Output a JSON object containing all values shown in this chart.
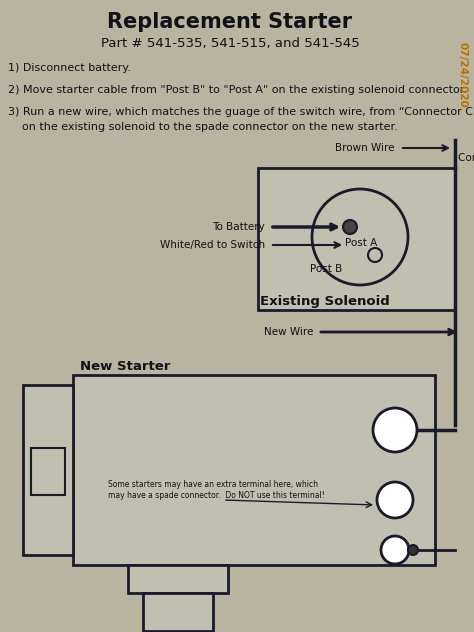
{
  "title": "Replacement Starter",
  "subtitle": "Part # 541-535, 541-515, and 541-545",
  "bg_color": "#b8b4a0",
  "paper_color": "#c8c5b2",
  "diagram_color": "#c0bfb0",
  "line_color": "#1a1a2a",
  "text_color": "#111118",
  "date_color": "#b87000",
  "date_text": "07/24/2020",
  "inst1": "1) Disconnect battery.",
  "inst2": "2) Move starter cable from \"Post B\" to \"Post A\" on the existing solenoid connector.",
  "inst3a": "3) Run a new wire, which matches the guage of the switch wire, from “Connector C”",
  "inst3b": "    on the existing solenoid to the spade connector on the new starter.",
  "label_brown": "Brown Wire",
  "label_connc": "Connector C",
  "label_battery": "To Battery",
  "label_posta": "Post A",
  "label_switch": "White/Red to Switch",
  "label_postb": "Post B",
  "label_existing": "Existing Solenoid",
  "label_newwire": "New Wire",
  "label_newstarter": "New Starter",
  "label_note": "Some starters may have an extra terminal here, which\nmay have a spade connector.  Do NOT use this terminal!"
}
